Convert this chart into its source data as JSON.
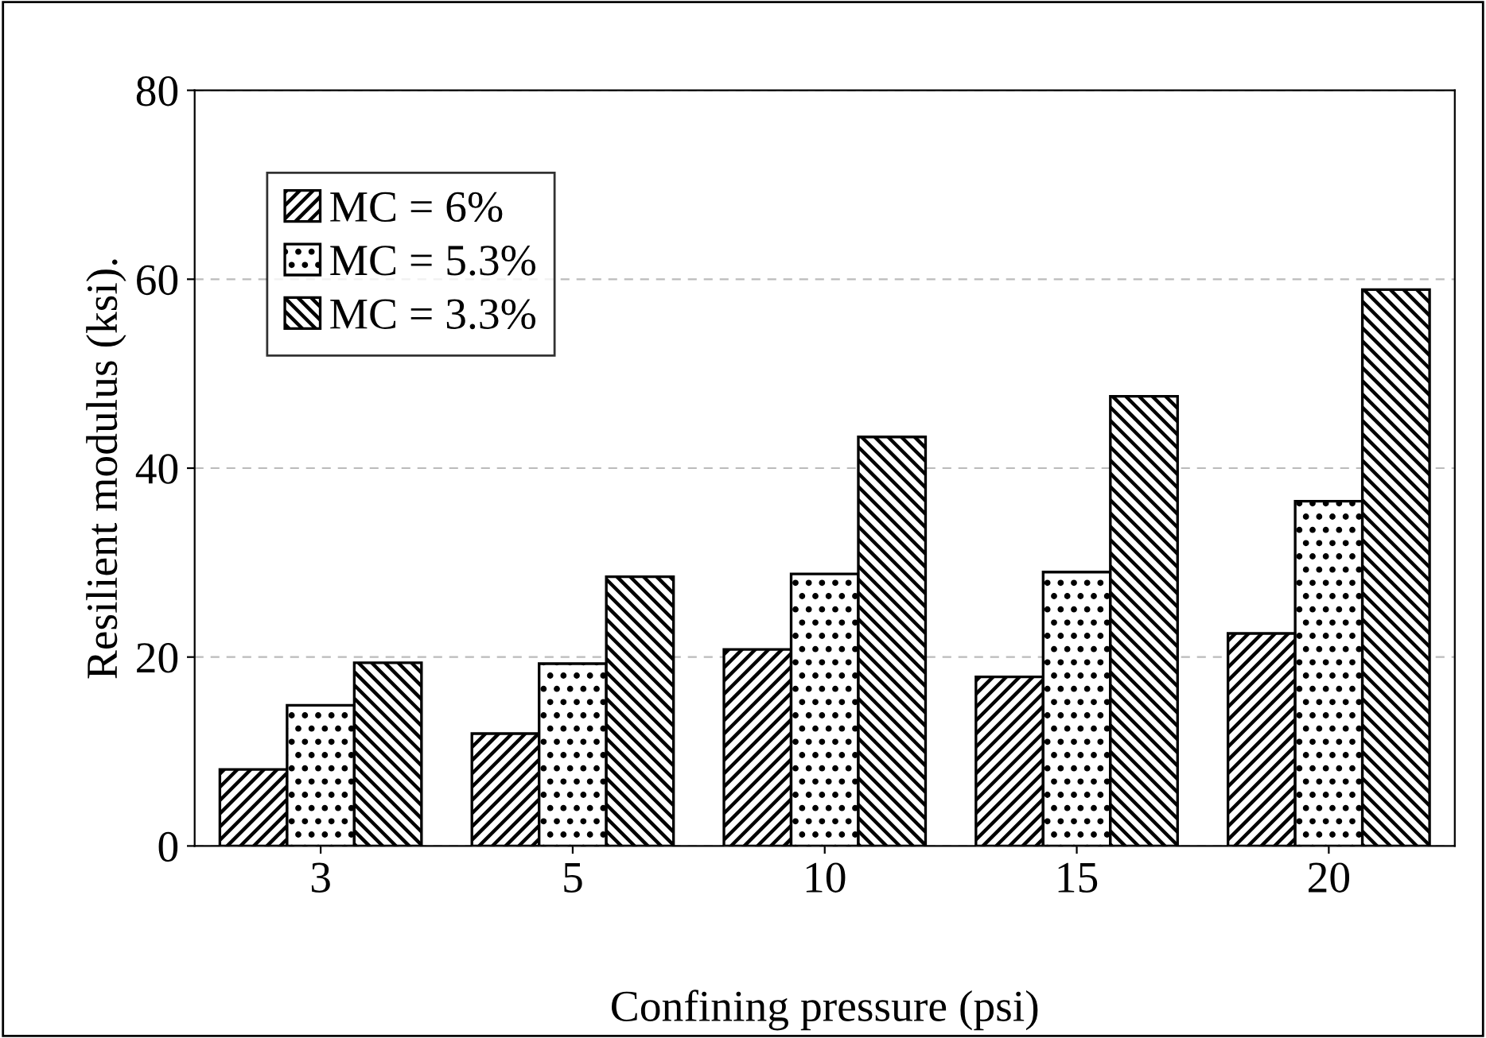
{
  "chart_data": {
    "type": "bar",
    "xlabel": "Confining pressure (psi)",
    "ylabel": "Resilient modulus (ksi).",
    "categories": [
      "3",
      "5",
      "10",
      "15",
      "20"
    ],
    "series": [
      {
        "name": "MC = 6%",
        "color": "#000000",
        "values": [
          8.1,
          11.9,
          20.8,
          17.9,
          22.5
        ]
      },
      {
        "name": "MC = 5.3%",
        "color": "#000000",
        "values": [
          14.9,
          19.3,
          28.8,
          29.0,
          36.5
        ]
      },
      {
        "name": "MC = 3.3%",
        "color": "#000000",
        "values": [
          19.4,
          28.5,
          43.3,
          47.6,
          58.9
        ]
      }
    ],
    "ylim": [
      0,
      80
    ],
    "yticks": [
      0,
      20,
      40,
      60,
      80
    ],
    "grid": "y",
    "legend": "top left"
  }
}
